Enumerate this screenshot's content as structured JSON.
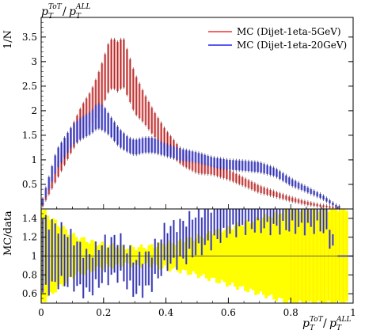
{
  "chart_data": [
    {
      "type": "line",
      "panel": "main",
      "title": "",
      "xlabel": "",
      "ylabel": "1/N",
      "ylim": [
        0,
        3.9
      ],
      "xlim": [
        0,
        1.0
      ],
      "yticks": [
        0.5,
        1,
        1.5,
        2,
        2.5,
        3,
        3.5
      ],
      "ytick_labels": [
        "0.5",
        "1",
        "1.5",
        "2",
        "2.5",
        "3",
        "3.5"
      ],
      "legend_position": "top-right",
      "series": [
        {
          "name": "MC (Dijet-1eta-5GeV)",
          "color": "#ee3333",
          "band": "#f06b6b",
          "x": [
            0.0,
            0.05,
            0.1,
            0.13,
            0.16,
            0.18,
            0.2,
            0.22,
            0.24,
            0.25,
            0.26,
            0.28,
            0.3,
            0.33,
            0.36,
            0.4,
            0.45,
            0.5,
            0.55,
            0.6,
            0.65,
            0.7,
            0.75,
            0.8,
            0.85,
            0.9,
            0.95
          ],
          "y": [
            0.05,
            0.75,
            1.45,
            1.8,
            2.05,
            2.3,
            2.6,
            2.95,
            2.95,
            2.85,
            3.05,
            2.7,
            2.35,
            2.05,
            1.75,
            1.4,
            1.05,
            0.85,
            0.8,
            0.7,
            0.55,
            0.4,
            0.3,
            0.2,
            0.12,
            0.06,
            0.02
          ],
          "err": [
            0.05,
            0.15,
            0.25,
            0.3,
            0.35,
            0.4,
            0.45,
            0.5,
            0.5,
            0.5,
            0.5,
            0.45,
            0.4,
            0.3,
            0.25,
            0.2,
            0.15,
            0.12,
            0.1,
            0.1,
            0.08,
            0.07,
            0.05,
            0.04,
            0.03,
            0.02,
            0.01
          ]
        },
        {
          "name": "MC (Dijet-1eta-20GeV)",
          "color": "#2222ee",
          "band": "#6a6af2",
          "x": [
            0.0,
            0.05,
            0.1,
            0.13,
            0.16,
            0.18,
            0.2,
            0.22,
            0.25,
            0.28,
            0.3,
            0.33,
            0.36,
            0.4,
            0.45,
            0.5,
            0.55,
            0.6,
            0.65,
            0.7,
            0.75,
            0.8,
            0.85,
            0.9,
            0.95
          ],
          "y": [
            0.05,
            1.0,
            1.5,
            1.65,
            1.75,
            1.9,
            1.85,
            1.7,
            1.45,
            1.3,
            1.25,
            1.3,
            1.3,
            1.2,
            1.1,
            1.05,
            0.95,
            0.9,
            0.88,
            0.85,
            0.75,
            0.55,
            0.4,
            0.25,
            0.04
          ],
          "err": [
            0.05,
            0.2,
            0.2,
            0.22,
            0.22,
            0.25,
            0.25,
            0.2,
            0.18,
            0.15,
            0.15,
            0.15,
            0.15,
            0.12,
            0.12,
            0.1,
            0.1,
            0.1,
            0.1,
            0.1,
            0.08,
            0.07,
            0.05,
            0.04,
            0.02
          ]
        }
      ]
    },
    {
      "type": "line",
      "panel": "ratio",
      "title": "",
      "xlabel": "",
      "ylabel": "MC/data",
      "ylim": [
        0.5,
        1.5
      ],
      "xlim": [
        0,
        1.0
      ],
      "xticks": [
        0,
        0.2,
        0.4,
        0.6,
        0.8,
        1.0
      ],
      "xtick_labels": [
        "0",
        "0.2",
        "0.4",
        "0.6",
        "0.8",
        "1"
      ],
      "yticks": [
        0.6,
        0.8,
        1,
        1.2,
        1.4
      ],
      "ytick_labels": [
        "0.6",
        "0.8",
        "1",
        "1.2",
        "1.4"
      ],
      "reference_line": 1,
      "uncertainty_band": {
        "color": "#ffff00",
        "x": [
          0.0,
          0.05,
          0.1,
          0.15,
          0.2,
          0.25,
          0.3,
          0.35,
          0.4,
          0.45,
          0.5,
          0.55,
          0.6,
          0.65,
          0.7,
          0.75,
          0.8,
          0.85,
          0.9,
          0.95
        ],
        "half_width": [
          0.5,
          0.35,
          0.22,
          0.16,
          0.12,
          0.1,
          0.09,
          0.1,
          0.13,
          0.16,
          0.2,
          0.25,
          0.3,
          0.35,
          0.4,
          0.45,
          0.5,
          0.5,
          0.5,
          0.5
        ]
      },
      "series": [
        {
          "name": "MC (Dijet-1eta-20GeV)",
          "color": "#2222ee",
          "band": "#6a6af2",
          "x": [
            0.0,
            0.05,
            0.1,
            0.15,
            0.2,
            0.25,
            0.3,
            0.35,
            0.4,
            0.45,
            0.5,
            0.55,
            0.6,
            0.65,
            0.7,
            0.75,
            0.8,
            0.85,
            0.9,
            0.95,
            0.99
          ],
          "y": [
            1.0,
            1.02,
            0.95,
            0.8,
            0.95,
            1.0,
            0.78,
            0.85,
            1.1,
            1.15,
            1.25,
            1.35,
            1.45,
            1.5,
            1.5,
            1.5,
            1.5,
            1.5,
            1.5,
            1.0,
            1.0
          ],
          "err": [
            0.4,
            0.3,
            0.25,
            0.2,
            0.2,
            0.2,
            0.18,
            0.18,
            0.2,
            0.2,
            0.2,
            0.2,
            0.2,
            0.2,
            0.2,
            0.2,
            0.2,
            0.2,
            0.2,
            0.0,
            0.0
          ]
        }
      ]
    }
  ],
  "axis_title": "p_T^{ToT} / p_T^{ALL}"
}
